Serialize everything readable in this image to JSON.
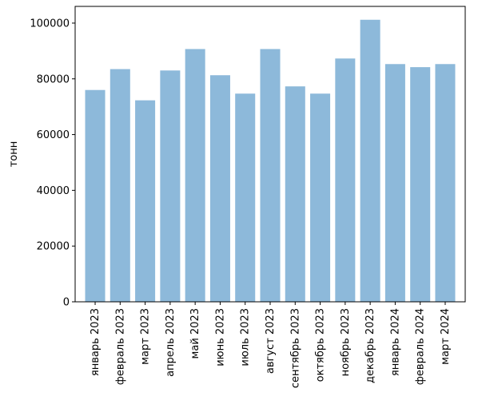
{
  "chart_data": {
    "type": "bar",
    "title": "",
    "xlabel": "",
    "ylabel": "тонн",
    "categories": [
      "январь 2023",
      "февраль 2023",
      "март 2023",
      "апрель 2023",
      "май 2023",
      "июнь 2023",
      "июль 2023",
      "август 2023",
      "сентябрь 2023",
      "октябрь 2023",
      "ноябрь 2023",
      "декабрь 2023",
      "январь 2024",
      "февраль 2024",
      "март 2024"
    ],
    "values": [
      76000,
      83500,
      72300,
      83000,
      90700,
      81300,
      74700,
      90700,
      77300,
      74700,
      87300,
      101200,
      85300,
      84200,
      85300
    ],
    "ylim": [
      0,
      106000
    ],
    "yticks": [
      0,
      20000,
      40000,
      60000,
      80000,
      100000
    ],
    "grid": false,
    "bar_color": "#8db9da"
  }
}
